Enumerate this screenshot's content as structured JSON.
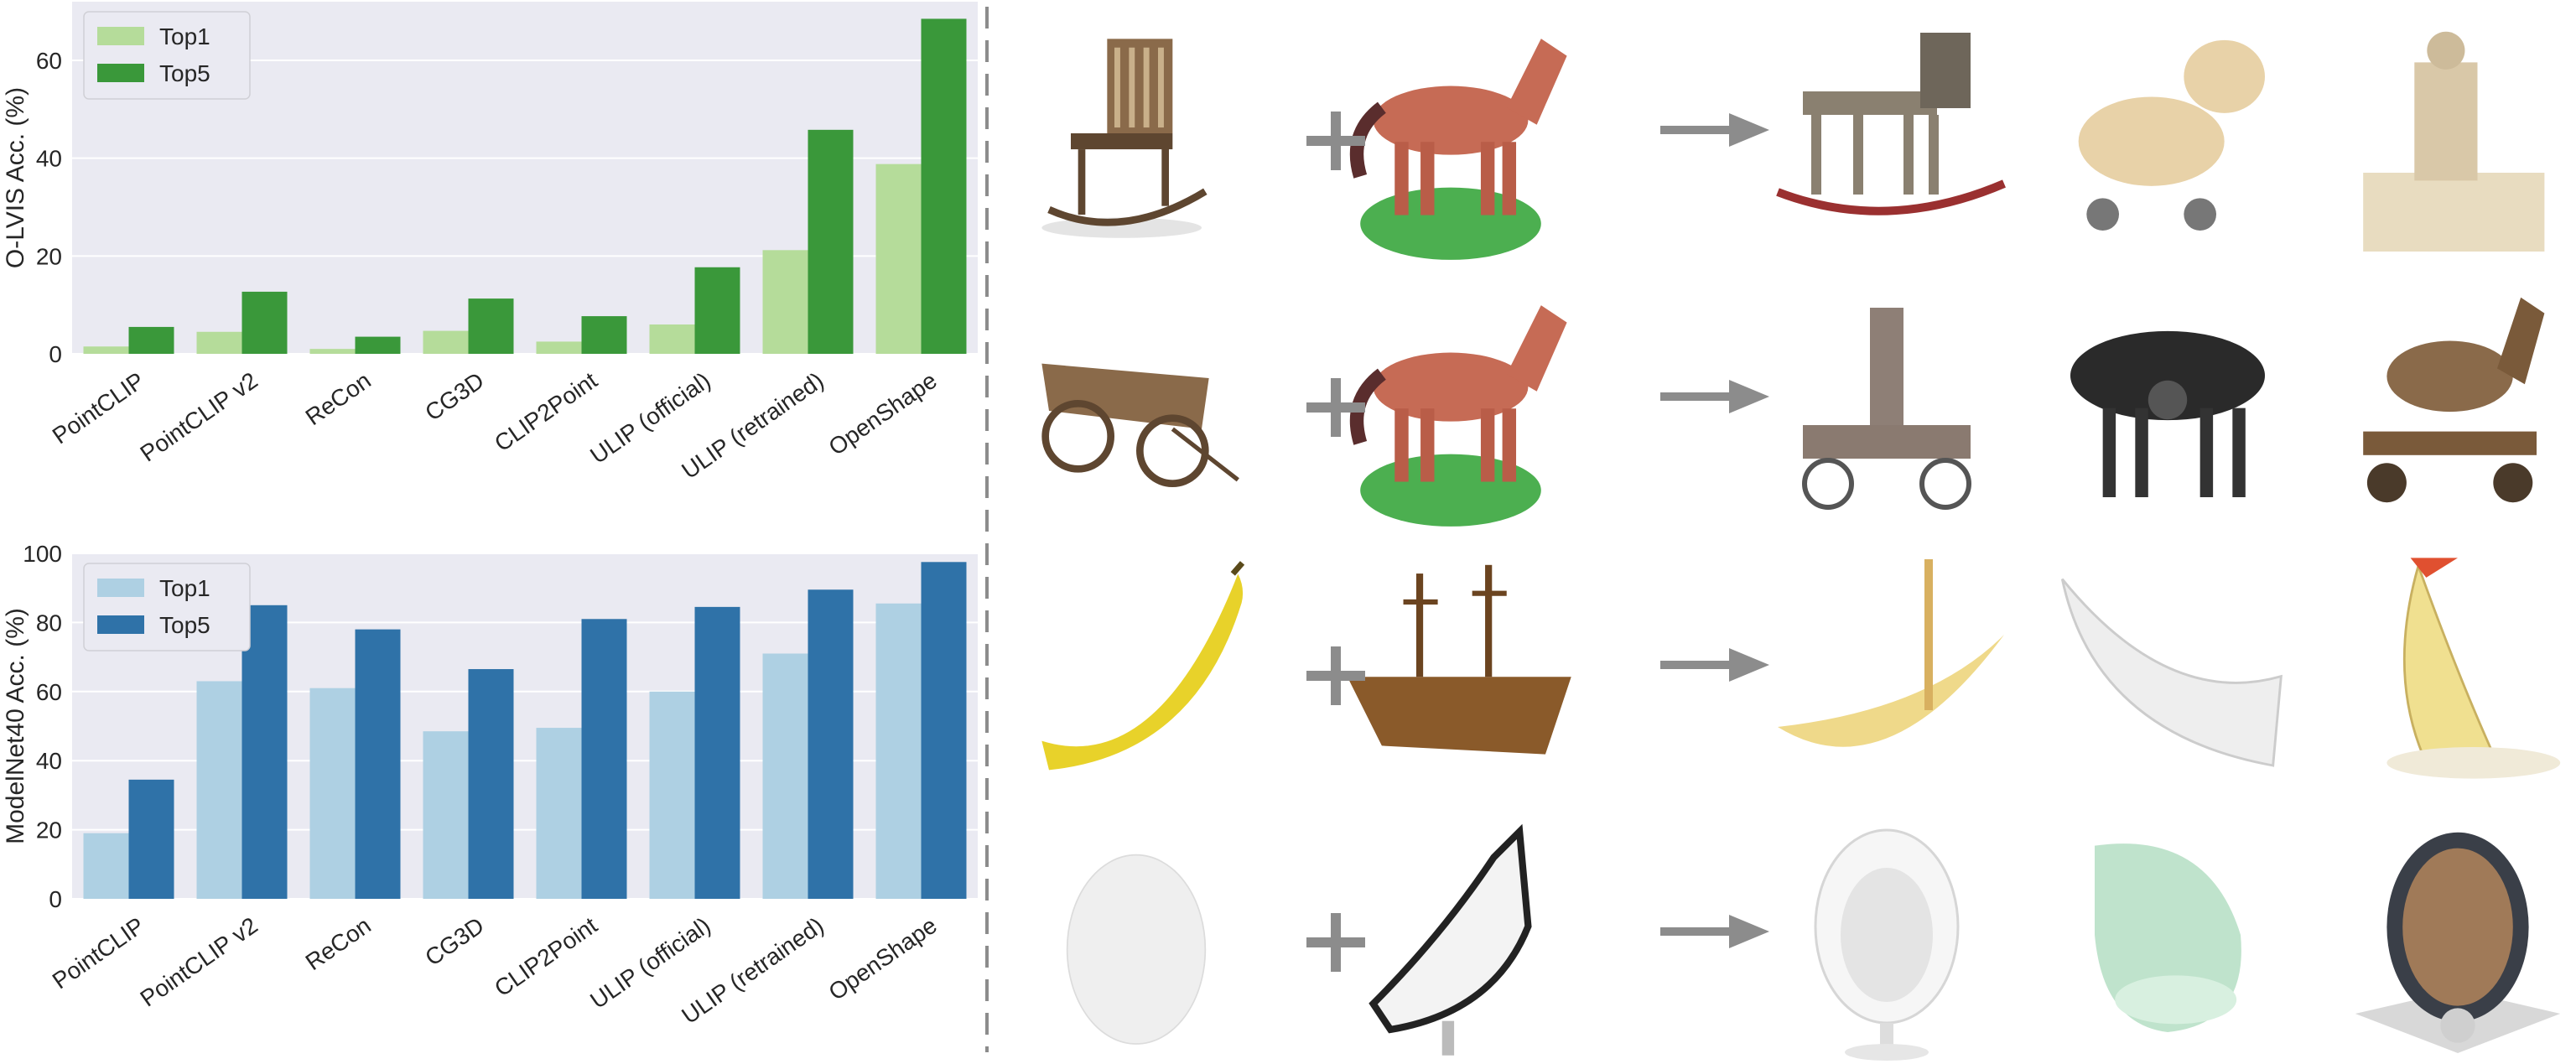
{
  "chart_data": [
    {
      "type": "bar",
      "ylabel": "O-LVIS Acc. (%)",
      "xlabel": "",
      "categories": [
        "PointCLIP",
        "PointCLIP v2",
        "ReCon",
        "CG3D",
        "CLIP2Point",
        "ULIP (official)",
        "ULIP (retrained)",
        "OpenShape"
      ],
      "series": [
        {
          "name": "Top1",
          "color": "#b5dc9a",
          "values": [
            1.5,
            4.5,
            1.0,
            4.7,
            2.5,
            6.0,
            21.2,
            38.8
          ]
        },
        {
          "name": "Top5",
          "color": "#3a983a",
          "values": [
            5.5,
            12.7,
            3.5,
            11.3,
            7.7,
            17.7,
            45.8,
            68.5
          ]
        }
      ],
      "yticks": [
        0,
        20,
        40,
        60
      ],
      "ylim": [
        0,
        72
      ],
      "grid": true,
      "legend_position": "top-left"
    },
    {
      "type": "bar",
      "ylabel": "ModelNet40 Acc. (%)",
      "xlabel": "",
      "categories": [
        "PointCLIP",
        "PointCLIP v2",
        "ReCon",
        "CG3D",
        "CLIP2Point",
        "ULIP (official)",
        "ULIP (retrained)",
        "OpenShape"
      ],
      "series": [
        {
          "name": "Top1",
          "color": "#aed0e3",
          "values": [
            19.0,
            63.0,
            61.0,
            48.5,
            49.5,
            60.0,
            71.0,
            85.5
          ]
        },
        {
          "name": "Top5",
          "color": "#2f72a8",
          "values": [
            34.5,
            85.0,
            78.0,
            66.5,
            81.0,
            84.5,
            89.5,
            97.5
          ]
        }
      ],
      "yticks": [
        0,
        20,
        40,
        60,
        80,
        100
      ],
      "ylim": [
        0,
        100
      ],
      "grid": true,
      "legend_position": "top-left"
    }
  ],
  "gallery": {
    "rows": [
      {
        "input_a": "wooden-rocking-chair",
        "input_b": "brown-horse-on-green-base",
        "results": [
          "wooden-rocking-horse",
          "cartoon-toy-horse-cart",
          "figure-seated-on-chair"
        ]
      },
      {
        "input_a": "wooden-wagon",
        "input_b": "brown-horse-on-green-base",
        "results": [
          "figure-riding-donkey-cart",
          "mechanical-black-horse",
          "wooden-horse-on-wheels"
        ]
      },
      {
        "input_a": "yellow-banana",
        "input_b": "wooden-ship",
        "results": [
          "banana-boat-with-mast",
          "white-crescent-boat",
          "banana-sail-boat"
        ]
      },
      {
        "input_a": "white-egg",
        "input_b": "racing-lounge-chair",
        "results": [
          "white-egg-chair",
          "mint-egg-chair",
          "shell-egg-chair"
        ]
      }
    ]
  }
}
